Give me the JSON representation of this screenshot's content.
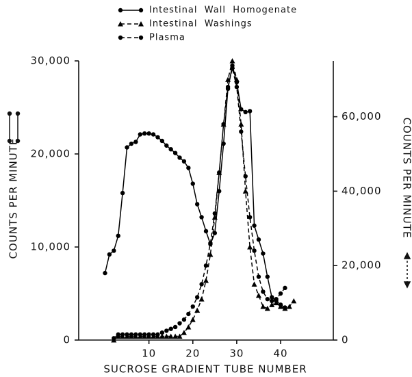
{
  "chart_data": {
    "type": "line",
    "x_label": "SUCROSE GRADIENT TUBE NUMBER",
    "y_label": "COUNTS PER MINUTE",
    "y2_label": "COUNTS PER MINUTE",
    "x": [
      0,
      1,
      2,
      3,
      4,
      5,
      6,
      7,
      8,
      9,
      10,
      11,
      12,
      13,
      14,
      15,
      16,
      17,
      18,
      19,
      20,
      21,
      22,
      23,
      24,
      25,
      26,
      27,
      28,
      29,
      30,
      31,
      32,
      33,
      34,
      35,
      36,
      37,
      38,
      39,
      40,
      41,
      42,
      43
    ],
    "xlim": [
      -6,
      52
    ],
    "xticks": [
      10,
      20,
      30,
      40
    ],
    "ylim": [
      0,
      30000
    ],
    "yticks": [
      0,
      {
        "value": 10000,
        "label": "10,000"
      },
      {
        "value": 20000,
        "label": "20,000"
      },
      {
        "value": 30000,
        "label": "30,000"
      }
    ],
    "y2lim": [
      0,
      75000
    ],
    "y2ticks": [
      0,
      {
        "value": 20000,
        "label": "20,000"
      },
      {
        "value": 40000,
        "label": "40,000"
      },
      {
        "value": 60000,
        "label": "60,000"
      }
    ],
    "series": [
      {
        "name": "Intestinal  Wall  Homogenate",
        "color": "#000000",
        "dashed": false,
        "marker": "circle",
        "values": [
          7200,
          9200,
          9600,
          11200,
          15800,
          20700,
          21100,
          21300,
          22100,
          22200,
          22200,
          22100,
          21800,
          21400,
          20900,
          20500,
          20100,
          19600,
          19200,
          18500,
          16800,
          14600,
          13200,
          11700,
          10300,
          11500,
          16000,
          21100,
          27000,
          29500,
          27700,
          24800,
          24500,
          24600,
          12300,
          10800,
          9300,
          6800,
          4600,
          4200,
          3800,
          3500,
          null,
          null
        ]
      },
      {
        "name": "Intestinal  Washings",
        "color": "#000000",
        "dashed": true,
        "marker": "triangle",
        "axis": "y2",
        "values": [
          null,
          null,
          0,
          1000,
          1000,
          1000,
          1000,
          1000,
          1000,
          1000,
          1000,
          1000,
          1000,
          1000,
          1000,
          1000,
          1000,
          1000,
          2000,
          3500,
          5500,
          8000,
          11000,
          16000,
          23000,
          33000,
          45000,
          58000,
          70000,
          75000,
          70000,
          58000,
          40000,
          25000,
          15000,
          12000,
          9000,
          8500,
          9500,
          10000,
          9000,
          8500,
          9000,
          10500
        ]
      },
      {
        "name": "Plasma",
        "color": "#000000",
        "dashed": true,
        "marker": "circle",
        "axis": "y2",
        "values": [
          null,
          null,
          500,
          1500,
          1500,
          1500,
          1500,
          1500,
          1500,
          1500,
          1500,
          1500,
          1500,
          2000,
          2500,
          3000,
          3500,
          4500,
          5500,
          7000,
          9000,
          11500,
          15000,
          20000,
          26000,
          34000,
          45000,
          58000,
          68000,
          73000,
          68000,
          56000,
          44000,
          33000,
          24000,
          17000,
          13000,
          11000,
          10500,
          11000,
          12500,
          14000,
          null,
          null
        ]
      }
    ]
  }
}
